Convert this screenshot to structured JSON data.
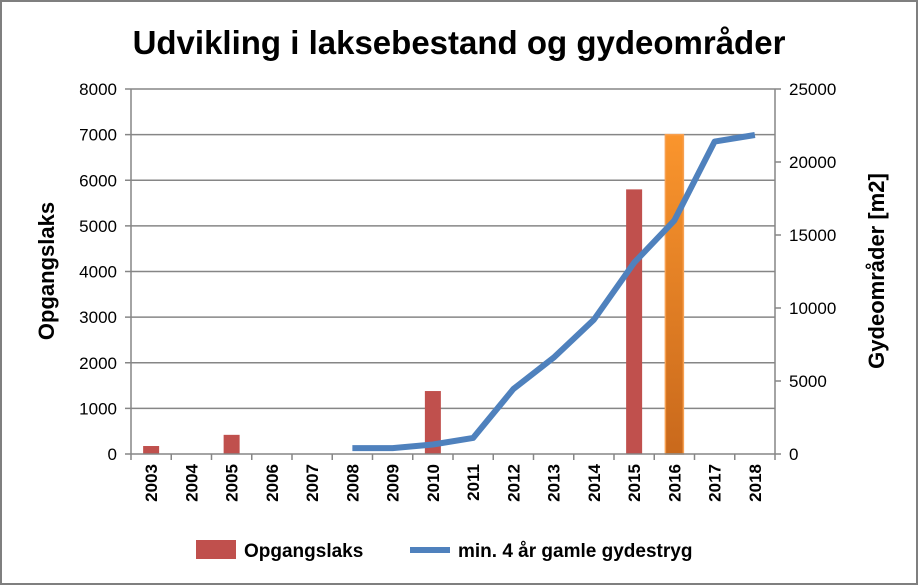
{
  "chart_data": {
    "type": "bar+line",
    "title": "Udvikling i laksebestand og gydeområder",
    "categories": [
      "2003",
      "2004",
      "2005",
      "2006",
      "2007",
      "2008",
      "2009",
      "2010",
      "2011",
      "2012",
      "2013",
      "2014",
      "2015",
      "2016",
      "2017",
      "2018"
    ],
    "ylabel": "Opgangslaks",
    "y2label": "Gydeområder [m2]",
    "ylim": [
      0,
      8000
    ],
    "y2lim": [
      0,
      25000
    ],
    "yticks": [
      0,
      1000,
      2000,
      3000,
      4000,
      5000,
      6000,
      7000,
      8000
    ],
    "y2ticks": [
      0,
      5000,
      10000,
      15000,
      20000,
      25000
    ],
    "grid": true,
    "legend_position": "bottom",
    "series": [
      {
        "name": "Opgangslaks",
        "type": "bar",
        "axis": "left",
        "color": "#c0504d",
        "highlight_color": "#f79646",
        "highlight_category": "2016",
        "values": [
          175,
          null,
          420,
          null,
          null,
          null,
          null,
          1380,
          null,
          null,
          null,
          null,
          5800,
          7000,
          null,
          null
        ]
      },
      {
        "name": "min. 4 år gamle gydestryg",
        "type": "line",
        "axis": "right",
        "color": "#4f81bd",
        "values": [
          null,
          null,
          null,
          null,
          null,
          400,
          400,
          650,
          1100,
          4450,
          6600,
          9200,
          13100,
          16000,
          21400,
          21850
        ]
      }
    ]
  }
}
